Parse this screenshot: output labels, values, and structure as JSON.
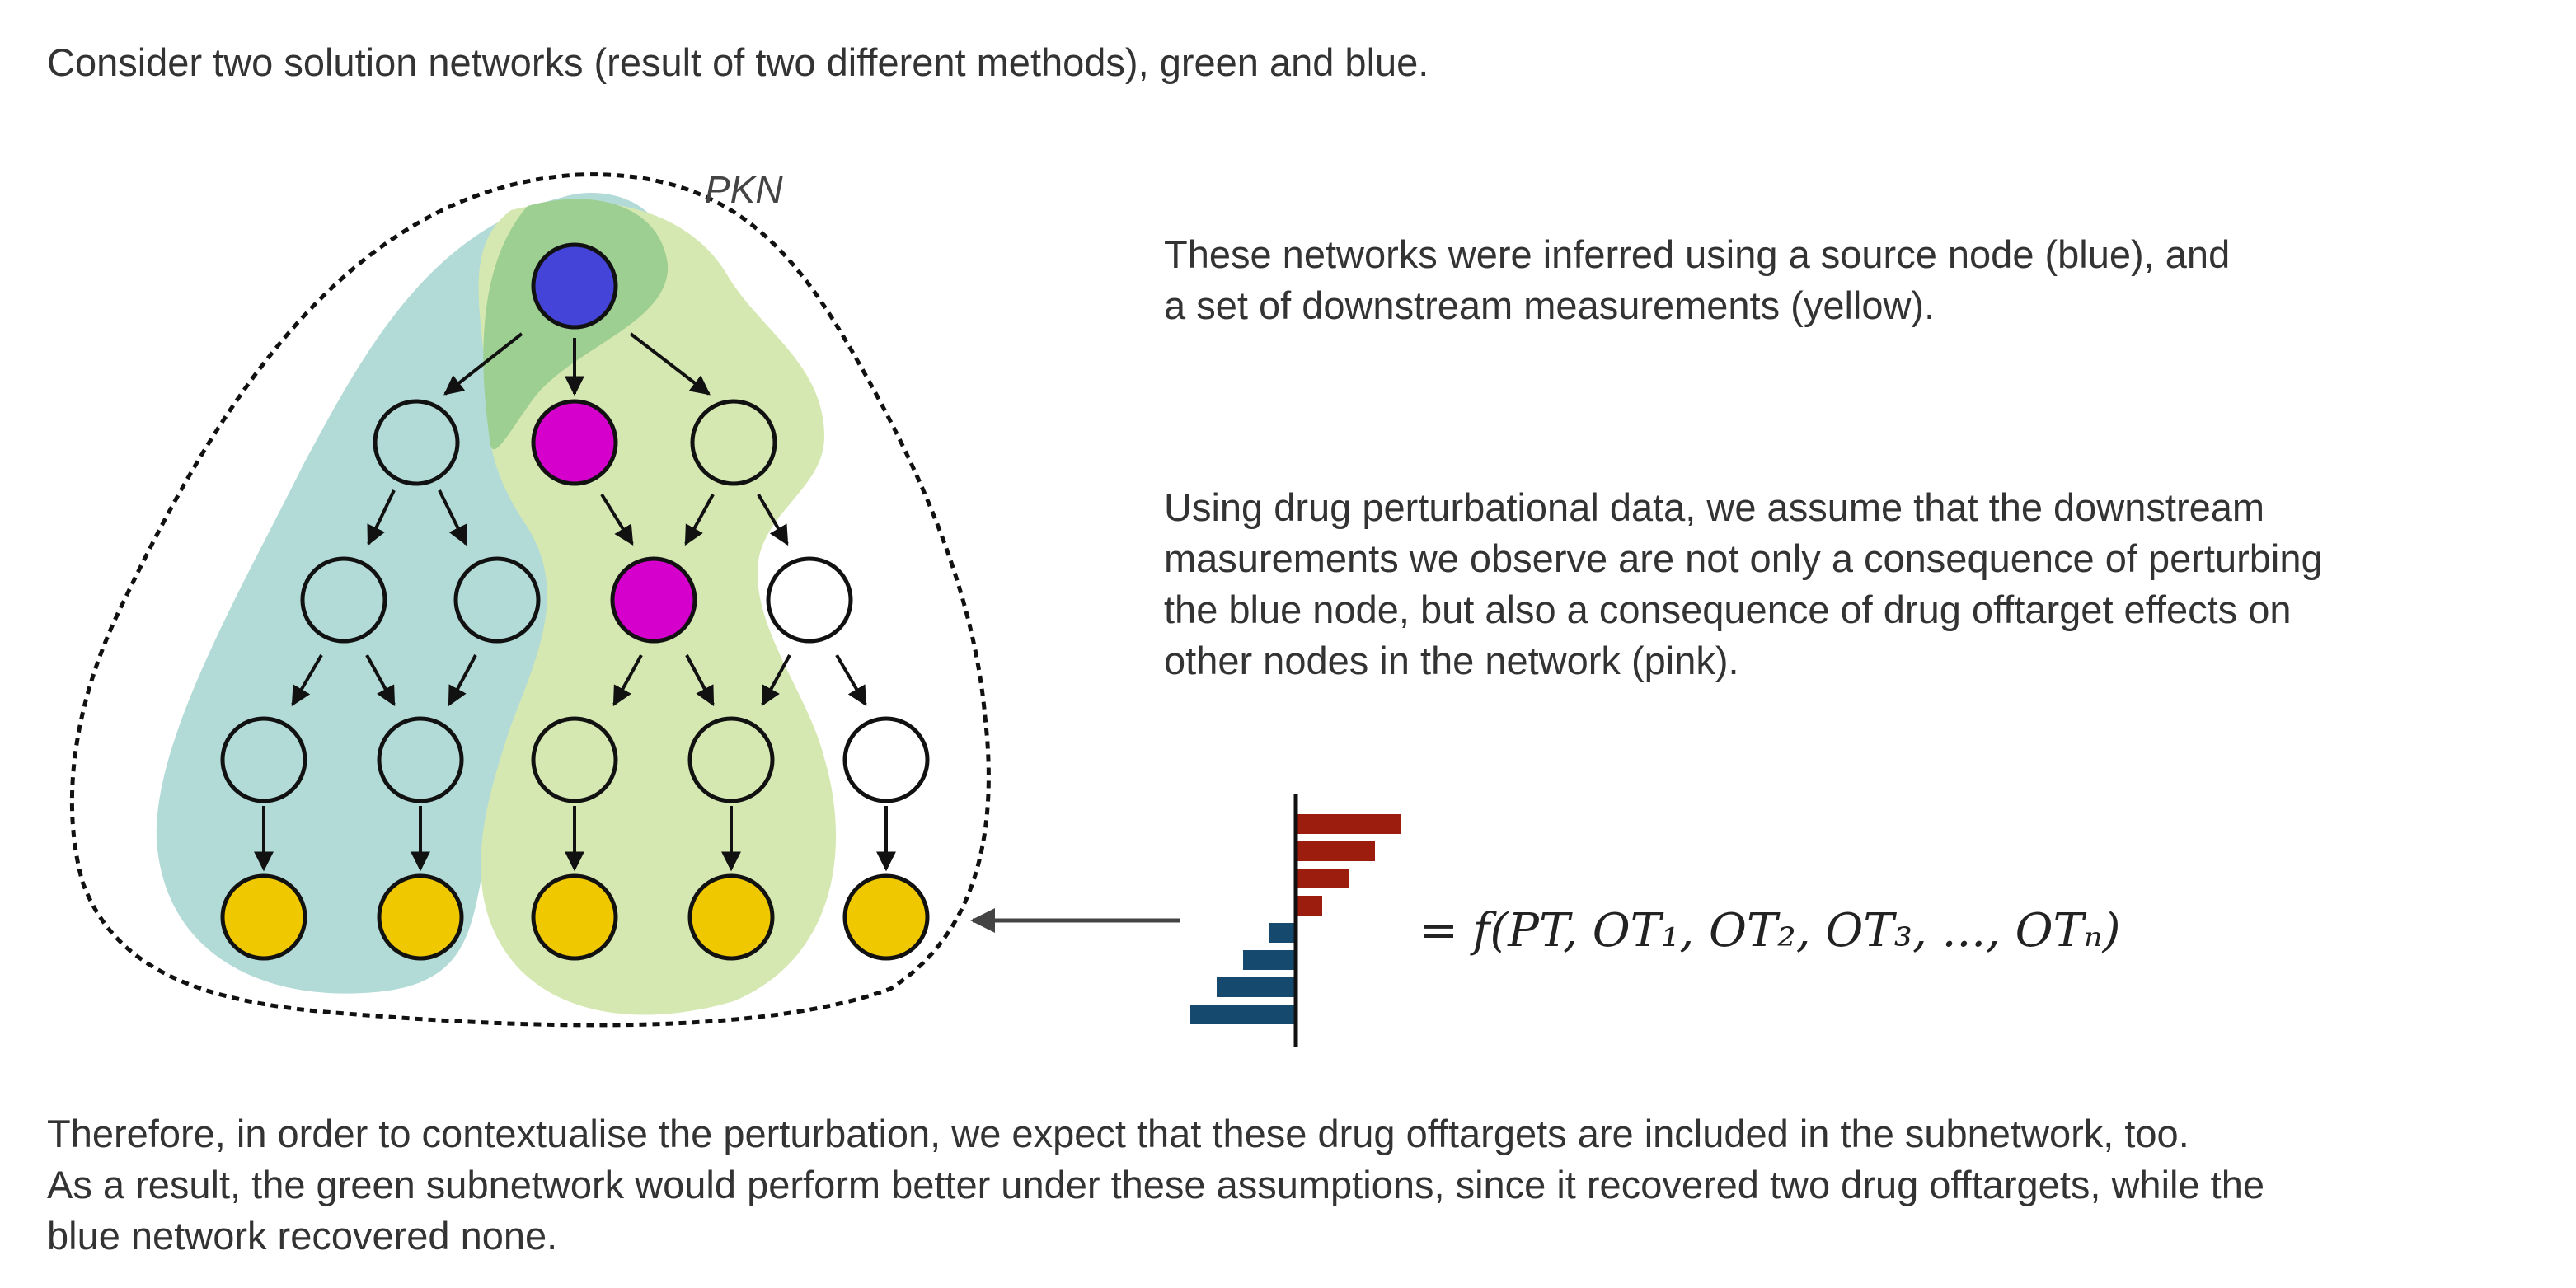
{
  "intro_text": "Consider two solution networks (result of two different methods), green and blue.",
  "pkn_label": "PKN",
  "paragraph_source": [
    "These networks were inferred using a source node (blue), and",
    "a set of downstream measurements (yellow)."
  ],
  "paragraph_offtarget": [
    "Using drug perturbational data, we assume that the downstream",
    "masurements we observe are not only a consequence of perturbing",
    "the blue node, but also a consequence of drug offtarget effects on",
    "other nodes in the network (pink)."
  ],
  "conclusion": [
    "Therefore, in order to contextualise the perturbation, we expect that these drug offtargets are included in the subnetwork, too.",
    "As a result, the green subnetwork would perform better under these assumptions, since it recovered two drug offtargets, while the",
    "blue network recovered none."
  ],
  "formula": "= f(PT, OT₁, OT₂, OT₃, ..., OTₙ)",
  "colors": {
    "source_node": "#4444d8",
    "offtarget_node": "#d600cc",
    "measurement_node": "#f0c800",
    "blue_subnetwork": "#b2dad6",
    "green_subnetwork": "#d6e8b2",
    "overlap": "#9ecf92",
    "positive_bar": "#9c1c0e",
    "negative_bar": "#154a6e"
  },
  "bar_values": {
    "positive": [
      4,
      3,
      2,
      1
    ],
    "negative": [
      1,
      2,
      3,
      4
    ]
  }
}
